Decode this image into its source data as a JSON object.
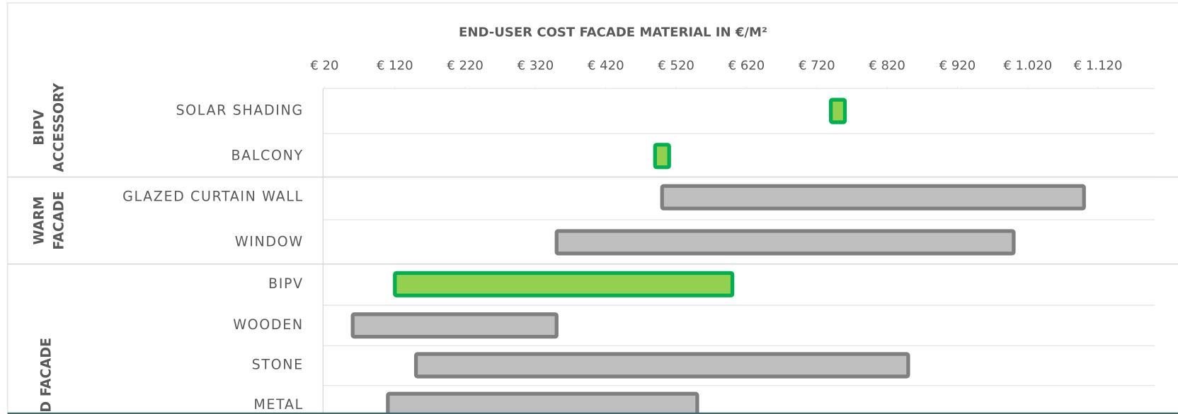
{
  "chart_data": {
    "type": "range-bar",
    "title": "END-USER COST FACADE MATERIAL IN €/M²",
    "categories": [
      "SOLAR SHADING",
      "BALCONY",
      "GLAZED CURTAIN WALL",
      "WINDOW",
      "BIPV",
      "WOODEN",
      "STONE",
      "METAL"
    ],
    "low": [
      740,
      490,
      500,
      350,
      120,
      60,
      150,
      110
    ],
    "high": [
      760,
      510,
      1100,
      1000,
      600,
      350,
      850,
      550
    ],
    "colors": [
      "#92d050",
      "#92d050",
      "#bfbfbf",
      "#bfbfbf",
      "#92d050",
      "#bfbfbf",
      "#bfbfbf",
      "#bfbfbf"
    ],
    "edge_colors": [
      "#00b050",
      "#00b050",
      "#7f7f7f",
      "#7f7f7f",
      "#00b050",
      "#7f7f7f",
      "#7f7f7f",
      "#7f7f7f"
    ],
    "groups": [
      {
        "lines": [
          "BIPV",
          "ACCESSORY"
        ]
      },
      {
        "lines": [
          "WARM",
          "FACADE"
        ]
      },
      {
        "lines": [
          "D FACADE"
        ]
      }
    ],
    "xlim": [
      20,
      1200
    ],
    "xticks": [
      {
        "value": 20,
        "label": "€ 20"
      },
      {
        "value": 120,
        "label": "€ 120"
      },
      {
        "value": 220,
        "label": "€ 220"
      },
      {
        "value": 320,
        "label": "€ 320"
      },
      {
        "value": 420,
        "label": "€ 420"
      },
      {
        "value": 520,
        "label": "€ 520"
      },
      {
        "value": 620,
        "label": "€ 620"
      },
      {
        "value": 720,
        "label": "€ 720"
      },
      {
        "value": 820,
        "label": "€ 820"
      },
      {
        "value": 920,
        "label": "€ 920"
      },
      {
        "value": 1020,
        "label": "€ 1.020"
      },
      {
        "value": 1120,
        "label": "€ 1.120"
      }
    ],
    "grid": true
  }
}
